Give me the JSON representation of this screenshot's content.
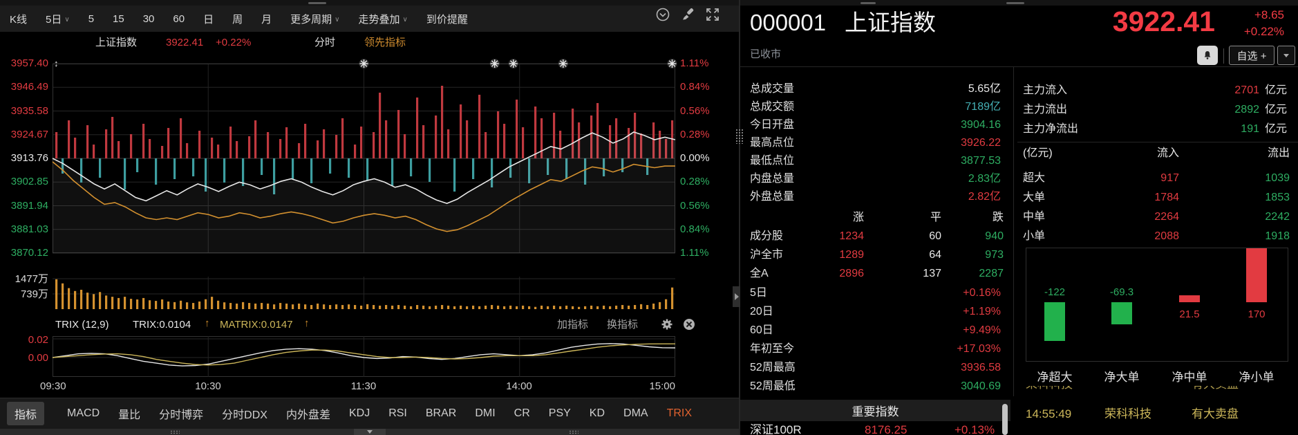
{
  "colors": {
    "red": "#e23b41",
    "bright_red": "#f33b44",
    "green": "#2eae62",
    "teal": "#45b0b5",
    "orange": "#d4912f",
    "yellow": "#cdb75a",
    "white": "#e8e8e8",
    "gray": "#9aa0a6",
    "bar_up": "#c0393f",
    "bar_down": "#3d9ea0"
  },
  "toolbar": {
    "periods": [
      {
        "label": "K线",
        "caret": false
      },
      {
        "label": "5日",
        "caret": true
      },
      {
        "label": "5",
        "caret": false
      },
      {
        "label": "15",
        "caret": false
      },
      {
        "label": "30",
        "caret": false
      },
      {
        "label": "60",
        "caret": false
      },
      {
        "label": "日",
        "caret": false
      },
      {
        "label": "周",
        "caret": false
      },
      {
        "label": "月",
        "caret": false
      },
      {
        "label": "更多周期",
        "caret": true
      },
      {
        "label": "走势叠加",
        "caret": true
      },
      {
        "label": "到价提醒",
        "caret": false
      }
    ],
    "icons": [
      "circle-chevron-down",
      "brush",
      "fullscreen"
    ]
  },
  "chart_header": {
    "name": "上证指数",
    "price": "3922.41",
    "change_pct": "+0.22%",
    "mode": "分时",
    "indicator": "领先指标"
  },
  "trix_row": {
    "title": "TRIX (12,9)",
    "trix_label": "TRIX:0.0104",
    "matrix_label": "MATRIX:0.0147",
    "arrow": "↑",
    "add_label": "加指标",
    "switch_label": "换指标"
  },
  "indicator_tabs": {
    "menu_label": "指标",
    "tabs": [
      "MACD",
      "量比",
      "分时博弈",
      "分时DDX",
      "内外盘差",
      "KDJ",
      "RSI",
      "BRAR",
      "DMI",
      "CR",
      "PSY",
      "KD",
      "DMA",
      "TRIX"
    ],
    "active": "TRIX"
  },
  "quote": {
    "code": "000001",
    "name": "上证指数",
    "price": "3922.41",
    "change": "+8.65",
    "change_pct": "+0.22%",
    "status": "已收市",
    "watchlist_label": "自选 +",
    "stats": [
      {
        "label": "总成交量",
        "value": "5.65亿",
        "color": "white"
      },
      {
        "label": "总成交额",
        "value": "7189亿",
        "color": "teal"
      },
      {
        "label": "今日开盘",
        "value": "3904.16",
        "color": "green"
      },
      {
        "label": "最高点位",
        "value": "3926.22",
        "color": "red"
      },
      {
        "label": "最低点位",
        "value": "3877.53",
        "color": "green"
      },
      {
        "label": "内盘总量",
        "value": "2.83亿",
        "color": "green"
      },
      {
        "label": "外盘总量",
        "value": "2.82亿",
        "color": "red"
      }
    ],
    "breadth": {
      "headers": [
        "涨",
        "平",
        "跌"
      ],
      "rows": [
        {
          "label": "成分股",
          "up": "1234",
          "flat": "60",
          "down": "940"
        },
        {
          "label": "沪全市",
          "up": "1289",
          "flat": "64",
          "down": "973"
        },
        {
          "label": "全A",
          "up": "2896",
          "flat": "137",
          "down": "2287"
        }
      ]
    },
    "performance": [
      {
        "label": "5日",
        "value": "+0.16%",
        "color": "red"
      },
      {
        "label": "20日",
        "value": "+1.19%",
        "color": "red"
      },
      {
        "label": "60日",
        "value": "+9.49%",
        "color": "red"
      },
      {
        "label": "年初至今",
        "value": "+17.03%",
        "color": "red"
      },
      {
        "label": "52周最高",
        "value": "3936.58",
        "color": "red"
      },
      {
        "label": "52周最低",
        "value": "3040.69",
        "color": "green"
      }
    ],
    "index_section": {
      "title": "重要指数",
      "rows": [
        {
          "name": "深证100R",
          "value": "8176.25",
          "pct": "+0.13%"
        }
      ]
    }
  },
  "money_flow": {
    "summary": [
      {
        "label": "主力流入",
        "value": "2701",
        "unit": "亿元",
        "color": "red"
      },
      {
        "label": "主力流出",
        "value": "2892",
        "unit": "亿元",
        "color": "green"
      },
      {
        "label": "主力净流出",
        "value": "191",
        "unit": "亿元",
        "color": "green"
      }
    ],
    "table": {
      "headers": [
        "(亿元)",
        "流入",
        "流出"
      ],
      "rows": [
        {
          "label": "超大",
          "in": "917",
          "out": "1039"
        },
        {
          "label": "大单",
          "in": "1784",
          "out": "1853"
        },
        {
          "label": "中单",
          "in": "2264",
          "out": "2242"
        },
        {
          "label": "小单",
          "in": "2088",
          "out": "1918"
        }
      ]
    }
  },
  "ticker": {
    "time": "14:55:49",
    "stock": "荣科科技",
    "event": "有大卖盘"
  },
  "chart_data": [
    {
      "type": "line",
      "title": "上证指数 分时 领先指标",
      "prev_close": 3913.76,
      "x_labels": [
        "09:30",
        "10:30",
        "11:30",
        "14:00",
        "15:00"
      ],
      "y_left_ticks": [
        "3957.40",
        "3946.49",
        "3935.58",
        "3924.67",
        "3913.76",
        "3902.85",
        "3891.94",
        "3881.03",
        "3870.12"
      ],
      "y_right_ticks": [
        "1.11%",
        "0.84%",
        "0.56%",
        "0.28%",
        "0.00%",
        "0.28%",
        "0.56%",
        "0.84%",
        "1.11%"
      ],
      "ylim_pct": [
        -1.115,
        1.115
      ],
      "star_positions": [
        0.5,
        0.71,
        0.74,
        0.82,
        0.995
      ],
      "series": [
        {
          "name": "price_pct",
          "color": "#e8e8e8",
          "values": [
            0.0,
            -0.06,
            -0.14,
            -0.22,
            -0.3,
            -0.36,
            -0.3,
            -0.38,
            -0.46,
            -0.5,
            -0.44,
            -0.38,
            -0.43,
            -0.36,
            -0.3,
            -0.34,
            -0.39,
            -0.33,
            -0.28,
            -0.31,
            -0.36,
            -0.32,
            -0.27,
            -0.24,
            -0.28,
            -0.34,
            -0.39,
            -0.43,
            -0.38,
            -0.31,
            -0.27,
            -0.24,
            -0.28,
            -0.34,
            -0.31,
            -0.36,
            -0.43,
            -0.49,
            -0.53,
            -0.48,
            -0.4,
            -0.33,
            -0.26,
            -0.18,
            -0.1,
            -0.04,
            0.02,
            0.08,
            0.14,
            0.11,
            0.17,
            0.24,
            0.3,
            0.25,
            0.18,
            0.23,
            0.31,
            0.27,
            0.22,
            0.25,
            0.22
          ]
        },
        {
          "name": "avg_pct",
          "color": "#d4912f",
          "values": [
            -0.04,
            -0.14,
            -0.26,
            -0.36,
            -0.46,
            -0.54,
            -0.52,
            -0.57,
            -0.64,
            -0.7,
            -0.72,
            -0.7,
            -0.72,
            -0.68,
            -0.64,
            -0.66,
            -0.7,
            -0.68,
            -0.64,
            -0.66,
            -0.7,
            -0.68,
            -0.65,
            -0.63,
            -0.65,
            -0.68,
            -0.72,
            -0.76,
            -0.74,
            -0.7,
            -0.67,
            -0.65,
            -0.67,
            -0.7,
            -0.68,
            -0.72,
            -0.78,
            -0.83,
            -0.86,
            -0.84,
            -0.79,
            -0.73,
            -0.67,
            -0.59,
            -0.51,
            -0.44,
            -0.37,
            -0.31,
            -0.25,
            -0.27,
            -0.21,
            -0.15,
            -0.1,
            -0.12,
            -0.16,
            -0.12,
            -0.07,
            -0.09,
            -0.11,
            -0.09,
            -0.09
          ]
        }
      ],
      "delta_bars": {
        "up_color": "#c0393f",
        "down_color": "#3d9ea0",
        "values": [
          38,
          -22,
          55,
          30,
          -35,
          48,
          20,
          -28,
          42,
          60,
          25,
          -45,
          35,
          -20,
          50,
          28,
          -38,
          18,
          44,
          -30,
          58,
          22,
          -26,
          40,
          -48,
          30,
          20,
          -35,
          46,
          25,
          -40,
          32,
          55,
          -24,
          38,
          -52,
          28,
          45,
          -30,
          22,
          50,
          -36,
          26,
          42,
          -22,
          34,
          58,
          -28,
          20,
          46,
          -32,
          38,
          95,
          55,
          -40,
          70,
          35,
          -26,
          88,
          48,
          -34,
          62,
          105,
          42,
          -48,
          78,
          55,
          -30,
          92,
          38,
          -42,
          68,
          50,
          -28,
          85,
          45,
          -36,
          75,
          58,
          -24,
          66,
          40,
          -30,
          72,
          52,
          -38,
          62,
          80,
          -26,
          48,
          58,
          -20,
          44,
          66,
          36,
          -24,
          52,
          40,
          28,
          55
        ]
      }
    },
    {
      "type": "bar",
      "name": "volume",
      "unit": "万",
      "y_ticks": [
        "1477万",
        "739万"
      ],
      "max": 1477,
      "color": "#d4912f",
      "values": [
        1450,
        1250,
        1020,
        880,
        940,
        800,
        730,
        830,
        660,
        600,
        540,
        600,
        500,
        470,
        540,
        430,
        400,
        470,
        370,
        340,
        410,
        330,
        300,
        370,
        480,
        600,
        410,
        330,
        300,
        270,
        340,
        300,
        270,
        300,
        270,
        230,
        300,
        270,
        230,
        270,
        230,
        200,
        270,
        230,
        200,
        230,
        200,
        230,
        200,
        170,
        240,
        200,
        170,
        200,
        170,
        200,
        170,
        140,
        200,
        170,
        140,
        170,
        200,
        170,
        140,
        170,
        140,
        170,
        140,
        170,
        200,
        170,
        140,
        170,
        140,
        170,
        140,
        110,
        170,
        140,
        170,
        140,
        170,
        140,
        110,
        140,
        170,
        140,
        170,
        140,
        170,
        200,
        170,
        200,
        240,
        200,
        270,
        340,
        480,
        1050
      ]
    },
    {
      "type": "line",
      "name": "TRIX",
      "params": "(12,9)",
      "y_ticks": [
        "0.02",
        "0.00"
      ],
      "series": [
        {
          "name": "TRIX",
          "last": 0.0104,
          "color": "#e8e8e8",
          "values": [
            0.0,
            0.002,
            0.004,
            0.0045,
            0.004,
            0.002,
            -0.001,
            -0.004,
            -0.006,
            -0.008,
            -0.009,
            -0.0085,
            -0.007,
            -0.004,
            -0.001,
            0.002,
            0.005,
            0.0075,
            0.009,
            0.0095,
            0.009,
            0.0075,
            0.005,
            0.002,
            0.0,
            -0.001,
            -0.0005,
            0.001,
            0.0005,
            -0.001,
            -0.002,
            -0.001,
            0.001,
            0.003,
            0.004,
            0.003,
            0.002,
            0.003,
            0.005,
            0.008,
            0.011,
            0.013,
            0.0145,
            0.015,
            0.0145,
            0.013,
            0.0115,
            0.0105,
            0.0104
          ]
        },
        {
          "name": "MATRIX",
          "last": 0.0147,
          "color": "#cdb75a",
          "values": [
            0.0,
            0.001,
            0.002,
            0.003,
            0.0038,
            0.004,
            0.003,
            0.001,
            -0.002,
            -0.004,
            -0.006,
            -0.0075,
            -0.008,
            -0.0075,
            -0.006,
            -0.003,
            0.0,
            0.003,
            0.0055,
            0.007,
            0.008,
            0.008,
            0.007,
            0.005,
            0.003,
            0.001,
            0.0,
            0.0,
            0.0005,
            0.0,
            -0.001,
            -0.0015,
            -0.001,
            0.0,
            0.0015,
            0.002,
            0.002,
            0.002,
            0.003,
            0.005,
            0.007,
            0.009,
            0.011,
            0.0125,
            0.0135,
            0.0142,
            0.0146,
            0.0147,
            0.0147
          ]
        }
      ]
    },
    {
      "type": "bar",
      "name": "net_money_flow",
      "unit": "亿元",
      "categories": [
        "净超大",
        "净大单",
        "净中单",
        "净小单"
      ],
      "values": [
        -122,
        -69.3,
        21.5,
        170
      ],
      "colors": [
        "#22b14c",
        "#22b14c",
        "#e23b41",
        "#e23b41"
      ]
    }
  ]
}
